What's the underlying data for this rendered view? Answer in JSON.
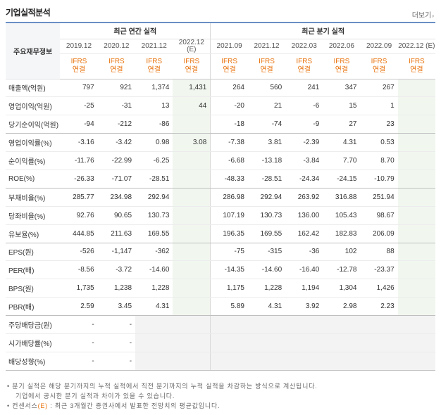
{
  "header": {
    "title": "기업실적분석",
    "more_label": "더보기",
    "more_arrow": "›"
  },
  "table": {
    "row_header_label": "주요재무정보",
    "annual_group_label": "최근 연간 실적",
    "quarter_group_label": "최근 분기 실적",
    "periods": [
      "2019.12",
      "2020.12",
      "2021.12",
      "2022.12\n(E)",
      "2021.09",
      "2021.12",
      "2022.03",
      "2022.06",
      "2022.09",
      "2022.12 (E)"
    ],
    "standards": [
      "IFRS\n연결",
      "IFRS\n연결",
      "IFRS\n연결",
      "IFRS\n연결",
      "IFRS\n연결",
      "IFRS\n연결",
      "IFRS\n연결",
      "IFRS\n연결",
      "IFRS\n연결",
      "IFRS\n연결"
    ],
    "rows": [
      {
        "label": "매출액(억원)",
        "values": [
          "797",
          "921",
          "1,374",
          "1,431",
          "264",
          "560",
          "241",
          "347",
          "267",
          ""
        ]
      },
      {
        "label": "영업이익(억원)",
        "values": [
          "-25",
          "-31",
          "13",
          "44",
          "-20",
          "21",
          "-6",
          "15",
          "1",
          ""
        ]
      },
      {
        "label": "당기순이익(억원)",
        "values": [
          "-94",
          "-212",
          "-86",
          "",
          "-18",
          "-74",
          "-9",
          "27",
          "23",
          ""
        ]
      },
      {
        "label": "영업이익률(%)",
        "values": [
          "-3.16",
          "-3.42",
          "0.98",
          "3.08",
          "-7.38",
          "3.81",
          "-2.39",
          "4.31",
          "0.53",
          ""
        ]
      },
      {
        "label": "순이익률(%)",
        "values": [
          "-11.76",
          "-22.99",
          "-6.25",
          "",
          "-6.68",
          "-13.18",
          "-3.84",
          "7.70",
          "8.70",
          ""
        ]
      },
      {
        "label": "ROE(%)",
        "values": [
          "-26.33",
          "-71.07",
          "-28.51",
          "",
          "-48.33",
          "-28.51",
          "-24.34",
          "-24.15",
          "-10.79",
          ""
        ]
      },
      {
        "label": "부채비율(%)",
        "values": [
          "285.77",
          "234.98",
          "292.94",
          "",
          "286.98",
          "292.94",
          "263.92",
          "316.88",
          "251.94",
          ""
        ]
      },
      {
        "label": "당좌비율(%)",
        "values": [
          "92.76",
          "90.65",
          "130.73",
          "",
          "107.19",
          "130.73",
          "136.00",
          "105.43",
          "98.67",
          ""
        ]
      },
      {
        "label": "유보율(%)",
        "values": [
          "444.85",
          "211.63",
          "169.55",
          "",
          "196.35",
          "169.55",
          "162.42",
          "182.83",
          "206.09",
          ""
        ]
      },
      {
        "label": "EPS(원)",
        "values": [
          "-526",
          "-1,147",
          "-362",
          "",
          "-75",
          "-315",
          "-36",
          "102",
          "88",
          ""
        ]
      },
      {
        "label": "PER(배)",
        "values": [
          "-8.56",
          "-3.72",
          "-14.60",
          "",
          "-14.35",
          "-14.60",
          "-16.40",
          "-12.78",
          "-23.37",
          ""
        ]
      },
      {
        "label": "BPS(원)",
        "values": [
          "1,735",
          "1,238",
          "1,228",
          "",
          "1,175",
          "1,228",
          "1,194",
          "1,304",
          "1,426",
          ""
        ]
      },
      {
        "label": "PBR(배)",
        "values": [
          "2.59",
          "3.45",
          "4.31",
          "",
          "5.89",
          "4.31",
          "3.92",
          "2.98",
          "2.23",
          ""
        ]
      },
      {
        "label": "주당배당금(원)",
        "values": [
          "-",
          "-",
          "",
          "",
          "",
          "",
          "",
          "",
          "",
          ""
        ]
      },
      {
        "label": "시가배당률(%)",
        "values": [
          "-",
          "-",
          "",
          "",
          "",
          "",
          "",
          "",
          "",
          ""
        ]
      },
      {
        "label": "배당성향(%)",
        "values": [
          "-",
          "-",
          "",
          "",
          "",
          "",
          "",
          "",
          "",
          ""
        ]
      }
    ]
  },
  "notes": {
    "line1": "• 분기 실적은 해당 분기까지의 누적 실적에서 직전 분기까지의 누적 실적을 차감하는 방식으로 계산됩니다.",
    "line2": "기업에서 공시한 분기 실적과 차이가 있을 수 있습니다.",
    "line3_prefix": "• 컨센서스",
    "line3_e": "(E)",
    "line3_suffix": " : 최근 3개월간 증권사에서 발표한 전망치의 평균값입니다."
  },
  "colors": {
    "negative": "#e0281b",
    "ifrs": "#e8720c",
    "accent_border": "#6a8fc4",
    "estimate_bg": "#f1f7ef"
  }
}
